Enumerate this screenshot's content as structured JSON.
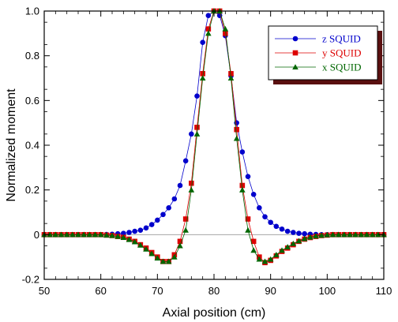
{
  "chart_data": {
    "type": "line",
    "title": "",
    "xlabel": "Axial position (cm)",
    "ylabel": "Normalized moment",
    "xlim": [
      50,
      110
    ],
    "ylim": [
      -0.2,
      1.0
    ],
    "xticks": [
      50,
      60,
      70,
      80,
      90,
      100,
      110
    ],
    "yticks": [
      -0.2,
      0,
      0.2,
      0.4,
      0.6,
      0.8,
      1.0
    ],
    "ytick_labels": [
      "-0.2",
      "0",
      "0.2",
      "0.4",
      "0.6",
      "0.8",
      "1.0"
    ],
    "xtick_labels": [
      "50",
      "60",
      "70",
      "80",
      "90",
      "100",
      "110"
    ],
    "grid": false,
    "zero_line": true,
    "legend_position": "top-right",
    "series": [
      {
        "name": "z SQUID",
        "color": "#0000cc",
        "marker": "circle",
        "x": [
          50,
          51,
          52,
          53,
          54,
          55,
          56,
          57,
          58,
          59,
          60,
          61,
          62,
          63,
          64,
          65,
          66,
          67,
          68,
          69,
          70,
          71,
          72,
          73,
          74,
          75,
          76,
          77,
          78,
          79,
          80,
          81,
          82,
          83,
          84,
          85,
          86,
          87,
          88,
          89,
          90,
          91,
          92,
          93,
          94,
          95,
          96,
          97,
          98,
          99,
          100,
          101,
          102,
          103,
          104,
          105,
          106,
          107,
          108,
          109,
          110
        ],
        "y": [
          0,
          0,
          0,
          0,
          0,
          0,
          0,
          0,
          0,
          0,
          0,
          0.001,
          0.002,
          0.004,
          0.006,
          0.01,
          0.015,
          0.02,
          0.03,
          0.045,
          0.065,
          0.09,
          0.12,
          0.16,
          0.22,
          0.33,
          0.45,
          0.62,
          0.86,
          0.98,
          1.0,
          0.98,
          0.89,
          0.71,
          0.5,
          0.37,
          0.26,
          0.18,
          0.12,
          0.08,
          0.055,
          0.037,
          0.025,
          0.015,
          0.01,
          0.006,
          0.004,
          0.002,
          0.001,
          0,
          0,
          0,
          0,
          0,
          0,
          0,
          0,
          0,
          0,
          0,
          0
        ]
      },
      {
        "name": "y SQUID",
        "color": "#dd0000",
        "marker": "square",
        "x": [
          50,
          51,
          52,
          53,
          54,
          55,
          56,
          57,
          58,
          59,
          60,
          61,
          62,
          63,
          64,
          65,
          66,
          67,
          68,
          69,
          70,
          71,
          72,
          73,
          74,
          75,
          76,
          77,
          78,
          79,
          80,
          81,
          82,
          83,
          84,
          85,
          86,
          87,
          88,
          89,
          90,
          91,
          92,
          93,
          94,
          95,
          96,
          97,
          98,
          99,
          100,
          101,
          102,
          103,
          104,
          105,
          106,
          107,
          108,
          109,
          110
        ],
        "y": [
          0,
          0,
          0,
          0,
          0,
          0,
          0,
          0,
          0,
          0,
          0,
          -0.002,
          -0.004,
          -0.008,
          -0.012,
          -0.02,
          -0.03,
          -0.045,
          -0.06,
          -0.08,
          -0.1,
          -0.12,
          -0.12,
          -0.09,
          -0.03,
          0.07,
          0.23,
          0.48,
          0.72,
          0.92,
          1.0,
          1.0,
          0.9,
          0.72,
          0.47,
          0.22,
          0.07,
          -0.03,
          -0.1,
          -0.125,
          -0.115,
          -0.095,
          -0.075,
          -0.06,
          -0.045,
          -0.03,
          -0.02,
          -0.013,
          -0.008,
          -0.004,
          -0.002,
          0,
          0,
          0,
          0,
          0,
          0,
          0,
          0,
          0,
          0
        ]
      },
      {
        "name": "x SQUID",
        "color": "#006600",
        "marker": "triangle",
        "x": [
          50,
          51,
          52,
          53,
          54,
          55,
          56,
          57,
          58,
          59,
          60,
          61,
          62,
          63,
          64,
          65,
          66,
          67,
          68,
          69,
          70,
          71,
          72,
          73,
          74,
          75,
          76,
          77,
          78,
          79,
          80,
          81,
          82,
          83,
          84,
          85,
          86,
          87,
          88,
          89,
          90,
          91,
          92,
          93,
          94,
          95,
          96,
          97,
          98,
          99,
          100,
          101,
          102,
          103,
          104,
          105,
          106,
          107,
          108,
          109,
          110
        ],
        "y": [
          0,
          0,
          0,
          0,
          0,
          0,
          0,
          0,
          0,
          0,
          0,
          -0.002,
          -0.004,
          -0.008,
          -0.013,
          -0.022,
          -0.032,
          -0.047,
          -0.065,
          -0.085,
          -0.105,
          -0.12,
          -0.12,
          -0.1,
          -0.05,
          0.02,
          0.2,
          0.45,
          0.7,
          0.9,
          1.0,
          1.0,
          0.92,
          0.7,
          0.43,
          0.2,
          0.02,
          -0.07,
          -0.11,
          -0.12,
          -0.11,
          -0.09,
          -0.07,
          -0.055,
          -0.04,
          -0.028,
          -0.018,
          -0.011,
          -0.006,
          -0.003,
          -0.001,
          0,
          0,
          0,
          0,
          0,
          0,
          0,
          0,
          0,
          0
        ]
      }
    ]
  }
}
